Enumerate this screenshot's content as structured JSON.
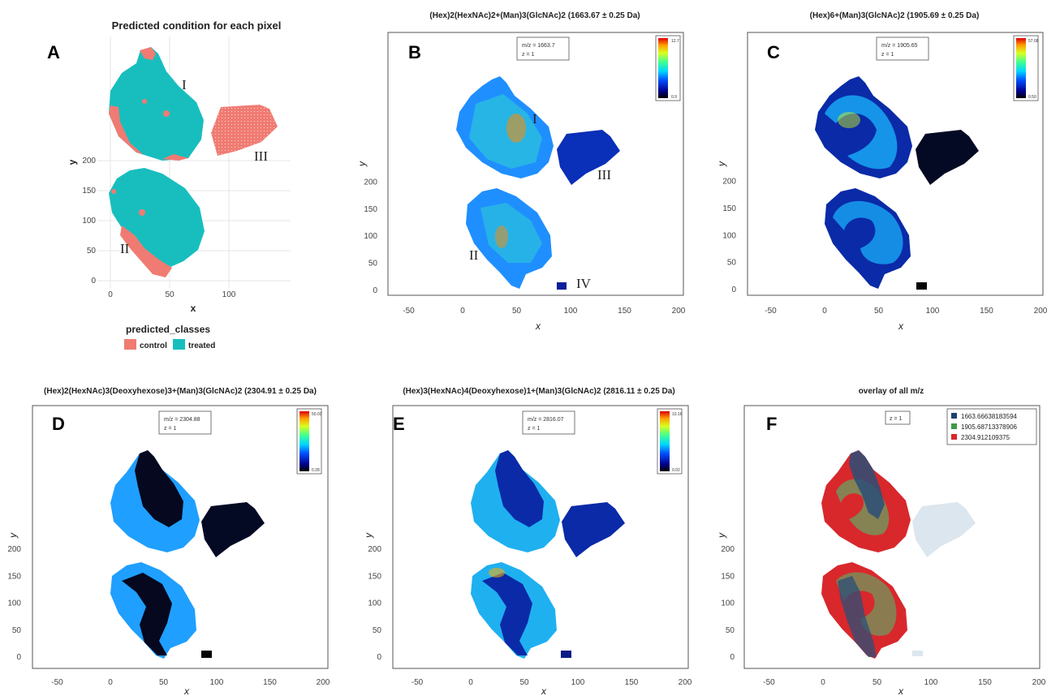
{
  "colors": {
    "control": "#f07b72",
    "treated": "#18bebe",
    "mz1": "#1f3f6e",
    "mz2": "#3f9b48",
    "mz3": "#d8282c"
  },
  "chart_data": [
    {
      "id": "A",
      "type": "scatter",
      "panel_letter": "A",
      "title": "Predicted condition for each pixel",
      "xlabel": "x",
      "ylabel": "y",
      "xlim": [
        -5,
        145
      ],
      "ylim": [
        -5,
        205
      ],
      "xticks": [
        "0",
        "50",
        "100"
      ],
      "yticks": [
        "0",
        "50",
        "100",
        "150",
        "200"
      ],
      "grid": true,
      "region_labels": [
        "I",
        "II",
        "III"
      ],
      "legend": {
        "title": "predicted_classes",
        "placement": "bottom",
        "entries": [
          "control",
          "treated"
        ]
      }
    },
    {
      "id": "B",
      "type": "heatmap",
      "panel_letter": "B",
      "title": "(Hex)2(HexNAc)2+(Man)3(GlcNAc)2 (1663.67 ± 0.25 Da)",
      "annotation": [
        "m/z = 1663.7",
        "z = 1"
      ],
      "xlabel": "x",
      "ylabel": "y",
      "xlim": [
        -60,
        205
      ],
      "ylim": [
        0,
        225
      ],
      "xticks": [
        "-50",
        "0",
        "50",
        "100",
        "150",
        "200"
      ],
      "yticks": [
        "0",
        "50",
        "100",
        "150",
        "200"
      ],
      "colorbar": [
        "12.7",
        "0.9"
      ],
      "region_labels": [
        "I",
        "II",
        "III",
        "IV"
      ]
    },
    {
      "id": "C",
      "type": "heatmap",
      "panel_letter": "C",
      "title": "(Hex)6+(Man)3(GlcNAc)2 (1905.69 ± 0.25 Da)",
      "annotation": [
        "m/z = 1905.65",
        "z = 1"
      ],
      "xlabel": "x",
      "ylabel": "y",
      "xlim": [
        -60,
        205
      ],
      "ylim": [
        0,
        225
      ],
      "xticks": [
        "-50",
        "0",
        "50",
        "100",
        "150",
        "200"
      ],
      "yticks": [
        "0",
        "50",
        "100",
        "150",
        "200"
      ],
      "colorbar": [
        "57.08",
        "0.50"
      ]
    },
    {
      "id": "D",
      "type": "heatmap",
      "panel_letter": "D",
      "title": "(Hex)2(HexNAc)3(Deoxyhexose)3+(Man)3(GlcNAc)2 (2304.91 ± 0.25 Da)",
      "annotation": [
        "m/z = 2304.88",
        "z = 1"
      ],
      "xlabel": "x",
      "ylabel": "y",
      "xlim": [
        -60,
        205
      ],
      "ylim": [
        0,
        225
      ],
      "xticks": [
        "-50",
        "0",
        "50",
        "100",
        "150",
        "200"
      ],
      "yticks": [
        "0",
        "50",
        "100",
        "150",
        "200"
      ],
      "colorbar": [
        "50.03",
        "0.28"
      ]
    },
    {
      "id": "E",
      "type": "heatmap",
      "panel_letter": "E",
      "title": "(Hex)3(HexNAc)4(Deoxyhexose)1+(Man)3(GlcNAc)2 (2816.11 ± 0.25 Da)",
      "annotation": [
        "m/z = 2816.07",
        "z = 1"
      ],
      "xlabel": "x",
      "ylabel": "y",
      "xlim": [
        -60,
        205
      ],
      "ylim": [
        0,
        225
      ],
      "xticks": [
        "-50",
        "0",
        "50",
        "100",
        "150",
        "200"
      ],
      "yticks": [
        "0",
        "50",
        "100",
        "150",
        "200"
      ],
      "colorbar": [
        "10.16",
        "0.02"
      ]
    },
    {
      "id": "F",
      "type": "heatmap",
      "panel_letter": "F",
      "title": "overlay of all m/z",
      "annotation": [
        "z = 1"
      ],
      "xlabel": "x",
      "ylabel": "y",
      "xlim": [
        -60,
        205
      ],
      "ylim": [
        0,
        225
      ],
      "xticks": [
        "-50",
        "0",
        "50",
        "100",
        "150",
        "200"
      ],
      "yticks": [
        "0",
        "50",
        "100",
        "150",
        "200"
      ],
      "legend": {
        "placement": "top-right",
        "entries": [
          "1663.66638183594",
          "1905.68713378906",
          "2304.912109375"
        ]
      }
    }
  ]
}
